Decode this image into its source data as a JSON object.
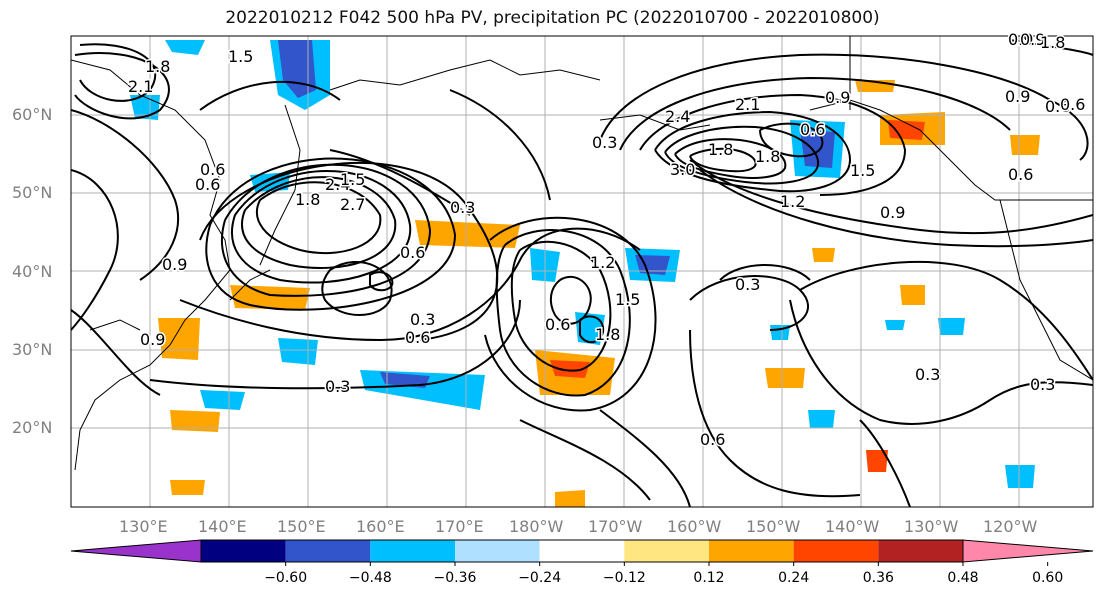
{
  "title": "2022010212 F042 500 hPa PV, precipitation PC (2022010700 - 2022010800)",
  "lat_labels": [
    "60°N",
    "50°N",
    "40°N",
    "30°N",
    "20°N"
  ],
  "lon_labels": [
    "130°E",
    "140°E",
    "150°E",
    "160°E",
    "170°E",
    "180°W",
    "170°W",
    "160°W",
    "150°W",
    "140°W",
    "130°W",
    "120°W"
  ],
  "contour_labels": [
    "1.5",
    "1.8",
    "2.1",
    "2.4",
    "2.7",
    "1.8",
    "1.5",
    "0.6",
    "0.6",
    "0.9",
    "0.9",
    "0.3",
    "0.6",
    "0.6",
    "0.3",
    "0.3",
    "0.6",
    "1.2",
    "1.5",
    "1.8",
    "0.9",
    "0.6",
    "0.3",
    "2.1",
    "2.4",
    "1.8",
    "3.0",
    "1.8",
    "1.5",
    "1.2",
    "0.9",
    "0.6",
    "0.9",
    "0.6",
    "0.9",
    "0.9",
    "0.3",
    "0.3",
    "0.3",
    "0.6",
    "1.8",
    "0.6"
  ],
  "colorbar": {
    "ticks": [
      "−0.60",
      "−0.48",
      "−0.36",
      "−0.24",
      "−0.12",
      "0.12",
      "0.24",
      "0.36",
      "0.48",
      "0.60"
    ],
    "colors": [
      "#9933cc",
      "#000080",
      "#3355cc",
      "#00bfff",
      "#b0e0ff",
      "#ffffff",
      "#ffe680",
      "#ffa500",
      "#ff4500",
      "#b22222",
      "#ff88aa"
    ]
  }
}
